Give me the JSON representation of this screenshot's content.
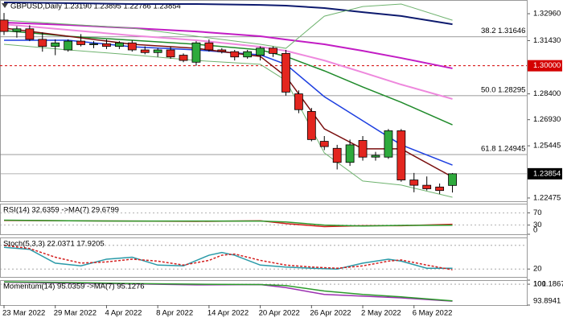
{
  "chart_data": [
    {
      "type": "candlestick",
      "title": "GBPUSD,Daily  1.23190 1.23895 1.22786 1.23854",
      "categories": [
        "23 Mar 2022",
        null,
        null,
        null,
        "29 Mar 2022",
        null,
        null,
        null,
        "4 Apr 2022",
        null,
        null,
        null,
        "8 Apr 2022",
        null,
        null,
        null,
        "14 Apr 2022",
        null,
        null,
        null,
        "20 Apr 2022",
        null,
        null,
        null,
        "26 Apr 2022",
        null,
        null,
        null,
        "2 May 2022",
        null,
        null,
        null,
        "6 May 2022",
        null,
        null,
        null
      ],
      "open": [
        1.326,
        1.3195,
        1.321,
        1.315,
        1.311,
        1.309,
        1.314,
        1.312,
        1.3125,
        1.311,
        1.313,
        1.309,
        1.3075,
        1.309,
        1.306,
        1.302,
        1.313,
        1.309,
        1.308,
        1.305,
        1.306,
        1.31,
        1.307,
        1.284,
        1.274,
        1.257,
        1.253,
        1.245,
        1.2575,
        1.248,
        1.248,
        1.263,
        1.235,
        1.232,
        1.231,
        1.2319
      ],
      "high": [
        1.33,
        1.3225,
        1.323,
        1.319,
        1.315,
        1.315,
        1.318,
        1.314,
        1.315,
        1.314,
        1.3145,
        1.311,
        1.31,
        1.311,
        1.307,
        1.314,
        1.315,
        1.31,
        1.309,
        1.309,
        1.311,
        1.311,
        1.309,
        1.286,
        1.276,
        1.26,
        1.255,
        1.258,
        1.26,
        1.251,
        1.264,
        1.264,
        1.239,
        1.237,
        1.233,
        1.23895
      ],
      "low": [
        1.3175,
        1.316,
        1.314,
        1.308,
        1.306,
        1.308,
        1.311,
        1.31,
        1.3095,
        1.3095,
        1.308,
        1.3065,
        1.305,
        1.304,
        1.302,
        1.3,
        1.308,
        1.307,
        1.303,
        1.304,
        1.303,
        1.305,
        1.283,
        1.273,
        1.257,
        1.252,
        1.241,
        1.243,
        1.246,
        1.246,
        1.247,
        1.234,
        1.228,
        1.229,
        1.227,
        1.22786
      ],
      "close": [
        1.3195,
        1.321,
        1.315,
        1.311,
        1.313,
        1.314,
        1.312,
        1.3125,
        1.311,
        1.313,
        1.309,
        1.3075,
        1.309,
        1.305,
        1.303,
        1.313,
        1.309,
        1.308,
        1.305,
        1.308,
        1.31,
        1.307,
        1.285,
        1.275,
        1.258,
        1.254,
        1.245,
        1.255,
        1.248,
        1.249,
        1.263,
        1.235,
        1.232,
        1.23,
        1.229,
        1.23854
      ],
      "up_color": "#2eaa3c",
      "down_color": "#e3261f",
      "ylim": [
        1.2229,
        1.3374
      ],
      "yticks": [
        {
          "value": 1.3296,
          "label": "1.32960"
        },
        {
          "value": 1.3143,
          "label": "1.31430"
        },
        {
          "value": 1.284,
          "label": "1.28400"
        },
        {
          "value": 1.2693,
          "label": "1.26930"
        },
        {
          "value": 1.25445,
          "label": "1.25445"
        },
        {
          "value": 1.22475,
          "label": "1.22475"
        }
      ],
      "overlays": [
        {
          "color": "#0d1a6e",
          "width": 2,
          "x": [
            0,
            5,
            10,
            15,
            20,
            22,
            25,
            28,
            31,
            35
          ],
          "values": [
            1.336,
            1.3356,
            1.3351,
            1.3351,
            1.3346,
            1.3342,
            1.3328,
            1.3305,
            1.3283,
            1.3236
          ]
        },
        {
          "color": "#c21cc4",
          "width": 2,
          "x": [
            0,
            5,
            10,
            15,
            20,
            22,
            25,
            28,
            31,
            35
          ],
          "values": [
            1.3246,
            1.3232,
            1.3214,
            1.3195,
            1.3168,
            1.3149,
            1.3122,
            1.3085,
            1.3044,
            1.2985
          ]
        },
        {
          "color": "#ee88dd",
          "width": 2,
          "x": [
            0,
            5,
            10,
            15,
            20,
            22,
            25,
            28,
            31,
            35
          ],
          "values": [
            1.3236,
            1.3204,
            1.3172,
            1.3145,
            1.3108,
            1.3085,
            1.303,
            1.2962,
            1.2893,
            1.2811
          ]
        },
        {
          "color": "#1f8a2a",
          "width": 1.5,
          "x": [
            0,
            5,
            10,
            15,
            20,
            22,
            25,
            28,
            31,
            35
          ],
          "values": [
            1.32,
            1.3168,
            1.3145,
            1.3122,
            1.309,
            1.3053,
            1.2971,
            1.2879,
            1.2792,
            1.2664
          ]
        },
        {
          "color": "#1d3fe0",
          "width": 1.5,
          "x": [
            0,
            5,
            10,
            15,
            20,
            22,
            25,
            28,
            31,
            35
          ],
          "values": [
            1.3145,
            1.3145,
            1.3108,
            1.309,
            1.3062,
            1.3008,
            1.2824,
            1.2687,
            1.255,
            1.2435
          ]
        },
        {
          "color": "#7a0f0f",
          "width": 1.5,
          "x": [
            0,
            5,
            10,
            15,
            20,
            22,
            25,
            28,
            31,
            35
          ],
          "values": [
            1.3214,
            1.3168,
            1.3122,
            1.3099,
            1.3053,
            1.2939,
            1.2641,
            1.2527,
            1.2527,
            1.2367
          ]
        },
        {
          "color": "#6fb36f",
          "width": 1,
          "x": [
            0,
            5,
            10,
            15,
            20,
            22,
            25,
            28,
            31,
            35
          ],
          "values": [
            1.3259,
            1.3236,
            1.3214,
            1.3168,
            1.3122,
            1.3099,
            1.3282,
            1.3337,
            1.3351,
            1.3259
          ]
        },
        {
          "color": "#6fb36f",
          "width": 1,
          "x": [
            0,
            5,
            10,
            15,
            20,
            22,
            25,
            28,
            31,
            35
          ],
          "values": [
            1.3122,
            1.309,
            1.3062,
            1.303,
            1.3008,
            1.2916,
            1.2504,
            1.2344,
            1.2321,
            1.2252
          ]
        }
      ],
      "levels": [
        {
          "value": 1.31646,
          "label": "38.2 1.31646"
        },
        {
          "value": 1.28295,
          "label": "50.0 1.28295"
        },
        {
          "value": 1.24945,
          "label": "61.8 1.24945"
        }
      ],
      "alert_line": {
        "value": 1.3,
        "label": "1.30000",
        "color": "#d40000"
      },
      "price_line": {
        "value": 1.23854,
        "label": "1.23854"
      }
    },
    {
      "type": "line",
      "title": "RSI(14) 32.6359 ->MA(7) 29.6799",
      "ylim": [
        0,
        100
      ],
      "yticks": [
        70,
        30,
        0
      ],
      "levels": [
        70,
        30
      ],
      "series": [
        {
          "color": "#d42020",
          "x": [
            0,
            5,
            10,
            15,
            20,
            22,
            25,
            28,
            31,
            35
          ],
          "values": [
            45,
            44,
            43,
            42,
            44,
            35,
            25,
            28,
            28,
            32.6
          ]
        },
        {
          "color": "#2c9a2c",
          "x": [
            0,
            5,
            10,
            15,
            20,
            22,
            25,
            28,
            31,
            35
          ],
          "values": [
            46,
            44,
            43,
            43,
            43,
            40,
            30,
            27,
            29,
            29.7
          ]
        }
      ]
    },
    {
      "type": "line",
      "title": "Stoch(5,3,3) 22.0371 17.9205",
      "ylim": [
        0,
        100
      ],
      "yticks": [
        20
      ],
      "levels": [
        80,
        20
      ],
      "series": [
        {
          "color": "#2a9aa8",
          "x": [
            0,
            2,
            4,
            6,
            8,
            10,
            12,
            14,
            16,
            17,
            18,
            20,
            22,
            24,
            26,
            28,
            30,
            31,
            33,
            35
          ],
          "values": [
            75,
            70,
            35,
            28,
            45,
            50,
            30,
            28,
            55,
            62,
            55,
            30,
            25,
            22,
            20,
            35,
            45,
            40,
            22,
            22
          ]
        },
        {
          "color": "#d42020",
          "dash": true,
          "x": [
            0,
            2,
            4,
            6,
            8,
            10,
            12,
            14,
            16,
            17,
            18,
            20,
            22,
            24,
            26,
            28,
            30,
            31,
            33,
            35
          ],
          "values": [
            80,
            72,
            50,
            35,
            38,
            45,
            40,
            30,
            42,
            55,
            58,
            42,
            30,
            25,
            22,
            28,
            40,
            43,
            30,
            18
          ]
        }
      ]
    },
    {
      "type": "line",
      "title": "Momentum(14) 95.0359 ->MA(7) 95.1276",
      "ylim": [
        93.8941,
        101.1867
      ],
      "yticks": [
        100,
        101.1867,
        93.8941
      ],
      "levels": [
        100
      ],
      "series": [
        {
          "color": "#9b2fb0",
          "x": [
            0,
            5,
            10,
            15,
            20,
            22,
            25,
            28,
            31,
            35
          ],
          "values": [
            100.6,
            100.3,
            100.1,
            99.8,
            99.9,
            99.0,
            97.0,
            96.5,
            96.0,
            95.04
          ]
        },
        {
          "color": "#2c9a2c",
          "x": [
            0,
            5,
            10,
            15,
            20,
            22,
            25,
            28,
            31,
            35
          ],
          "values": [
            100.7,
            100.5,
            100.2,
            100.0,
            99.9,
            99.6,
            98.0,
            97.0,
            96.3,
            95.13
          ]
        }
      ]
    }
  ]
}
